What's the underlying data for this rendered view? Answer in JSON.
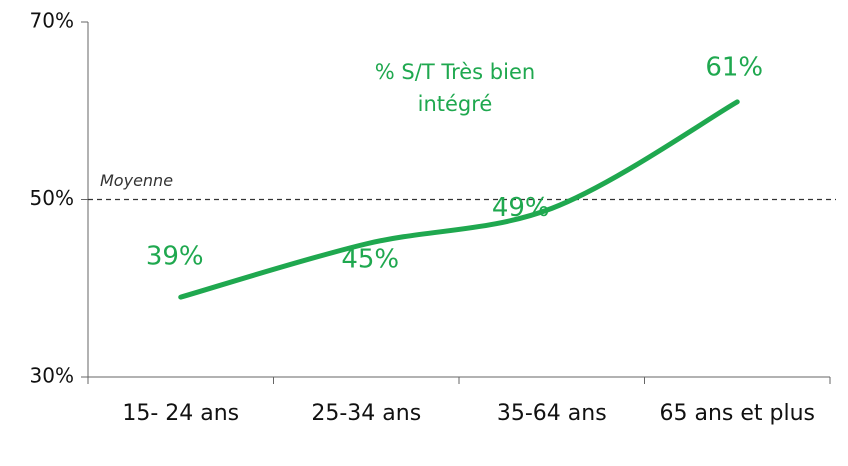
{
  "chart_data": {
    "type": "line",
    "categories": [
      "15- 24 ans",
      "25-34 ans",
      "35-64 ans",
      "65 ans et plus"
    ],
    "series": [
      {
        "name": "% S/T Très bien intégré",
        "color": "#1fa84f",
        "values": [
          39,
          45,
          49,
          61
        ],
        "value_labels": [
          "39%",
          "45%",
          "49%",
          "61%"
        ]
      }
    ],
    "ylim": [
      30,
      70
    ],
    "yticks": [
      {
        "value": 30,
        "label": "30%"
      },
      {
        "value": 50,
        "label": "50%"
      },
      {
        "value": 70,
        "label": "70%"
      }
    ],
    "reference_line": {
      "value": 50,
      "label": "Moyenne"
    }
  }
}
